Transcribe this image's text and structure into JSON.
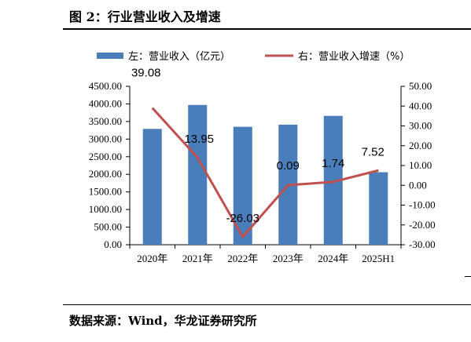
{
  "figure": {
    "title": "图 2：行业营业收入及增速",
    "source": "数据来源：Wind，华龙证券研究所"
  },
  "chart_data": {
    "type": "bar+line",
    "categories": [
      "2020年",
      "2021年",
      "2022年",
      "2023年",
      "2024年",
      "2025H1"
    ],
    "series": [
      {
        "name": "左：营业收入（亿元）",
        "type": "bar",
        "axis": "left",
        "color": "#4a7ebb",
        "values": [
          3290,
          3970,
          3350,
          3410,
          3660,
          2060
        ]
      },
      {
        "name": "右：营业收入增速（%）",
        "type": "line",
        "axis": "right",
        "color": "#c0504d",
        "values": [
          39.08,
          13.95,
          -26.03,
          0.09,
          1.74,
          7.52
        ],
        "data_labels": [
          "39.08",
          "13.95",
          "-26.03",
          "0.09",
          "1.74",
          "7.52"
        ]
      }
    ],
    "left_axis": {
      "ylim": [
        0,
        4500
      ],
      "ticks": [
        "0.00",
        "500.00",
        "1000.00",
        "1500.00",
        "2000.00",
        "2500.00",
        "3000.00",
        "3500.00",
        "4000.00",
        "4500.00"
      ]
    },
    "right_axis": {
      "ylim": [
        -30,
        50
      ],
      "ticks": [
        "-30.00",
        "-20.00",
        "-10.00",
        "0.00",
        "10.00",
        "20.00",
        "30.00",
        "40.00",
        "50.00"
      ]
    },
    "grid": false,
    "legend_position": "top"
  }
}
